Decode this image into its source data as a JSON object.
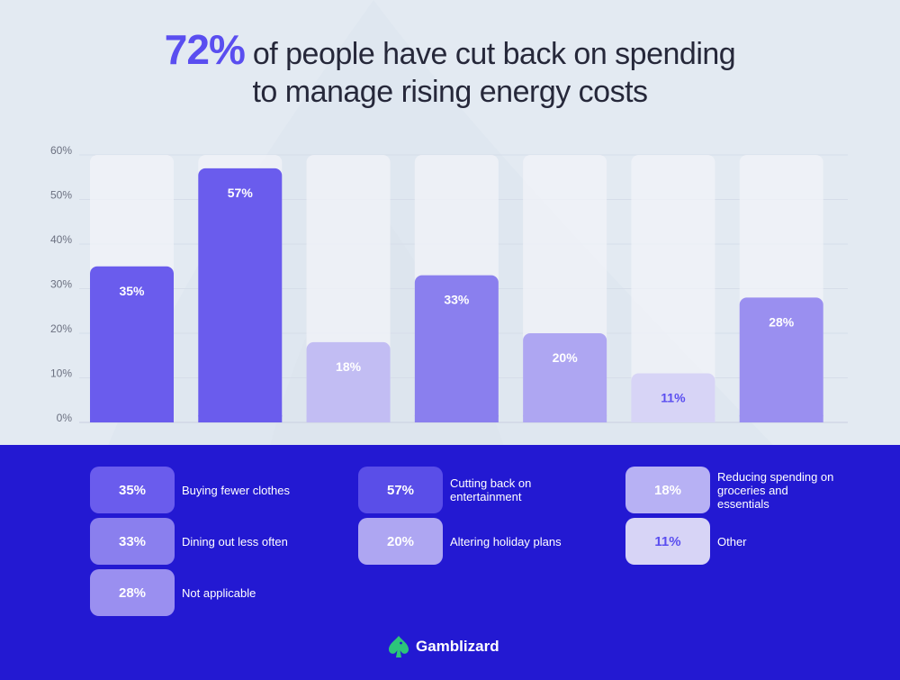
{
  "title": {
    "highlight": "72%",
    "rest_line1": "of people have cut back on spending",
    "line2": "to manage rising energy costs"
  },
  "chart_data": {
    "type": "bar",
    "categories": [
      "Buying fewer clothes",
      "Cutting back on entertainment",
      "Reducing spending on groceries and essentials",
      "Dining out less often",
      "Altering holiday plans",
      "Other",
      "Not applicable"
    ],
    "values": [
      35,
      57,
      18,
      33,
      20,
      11,
      28
    ],
    "value_labels": [
      "35%",
      "57%",
      "18%",
      "33%",
      "20%",
      "11%",
      "28%"
    ],
    "y_ticks": [
      "0%",
      "10%",
      "20%",
      "30%",
      "40%",
      "50%",
      "60%"
    ],
    "ylim": [
      0,
      60
    ],
    "grid": true,
    "colors": [
      "#6a5ced",
      "#6a5ced",
      "#c2bdf3",
      "#8a7fee",
      "#aea6f2",
      "#d7d4f6",
      "#9a8ff0"
    ],
    "label_colors": [
      "#ffffff",
      "#ffffff",
      "#ffffff",
      "#ffffff",
      "#ffffff",
      "#5a4ef0",
      "#ffffff"
    ],
    "track_color": "#f1f3f8"
  },
  "legend": [
    {
      "value": "35%",
      "label": "Buying fewer clothes"
    },
    {
      "value": "57%",
      "label": "Cutting back on entertainment"
    },
    {
      "value": "18%",
      "label": "Reducing spending on groceries and essentials"
    },
    {
      "value": "33%",
      "label": "Dining out less often"
    },
    {
      "value": "20%",
      "label": "Altering holiday plans"
    },
    {
      "value": "11%",
      "label": "Other"
    },
    {
      "value": "28%",
      "label": "Not applicable"
    }
  ],
  "legend_chip_colors": [
    "#6a5ced",
    "#5a4ee8",
    "#b7b1f4",
    "#8a7fee",
    "#aea6f2",
    "#d7d4f6",
    "#9a8ff0"
  ],
  "legend_value_colors": [
    "#ffffff",
    "#ffffff",
    "#ffffff",
    "#ffffff",
    "#ffffff",
    "#5a4ef0",
    "#ffffff"
  ],
  "brand": {
    "name": "Gamblizard",
    "icon": "spade-lizard-logo-icon"
  }
}
